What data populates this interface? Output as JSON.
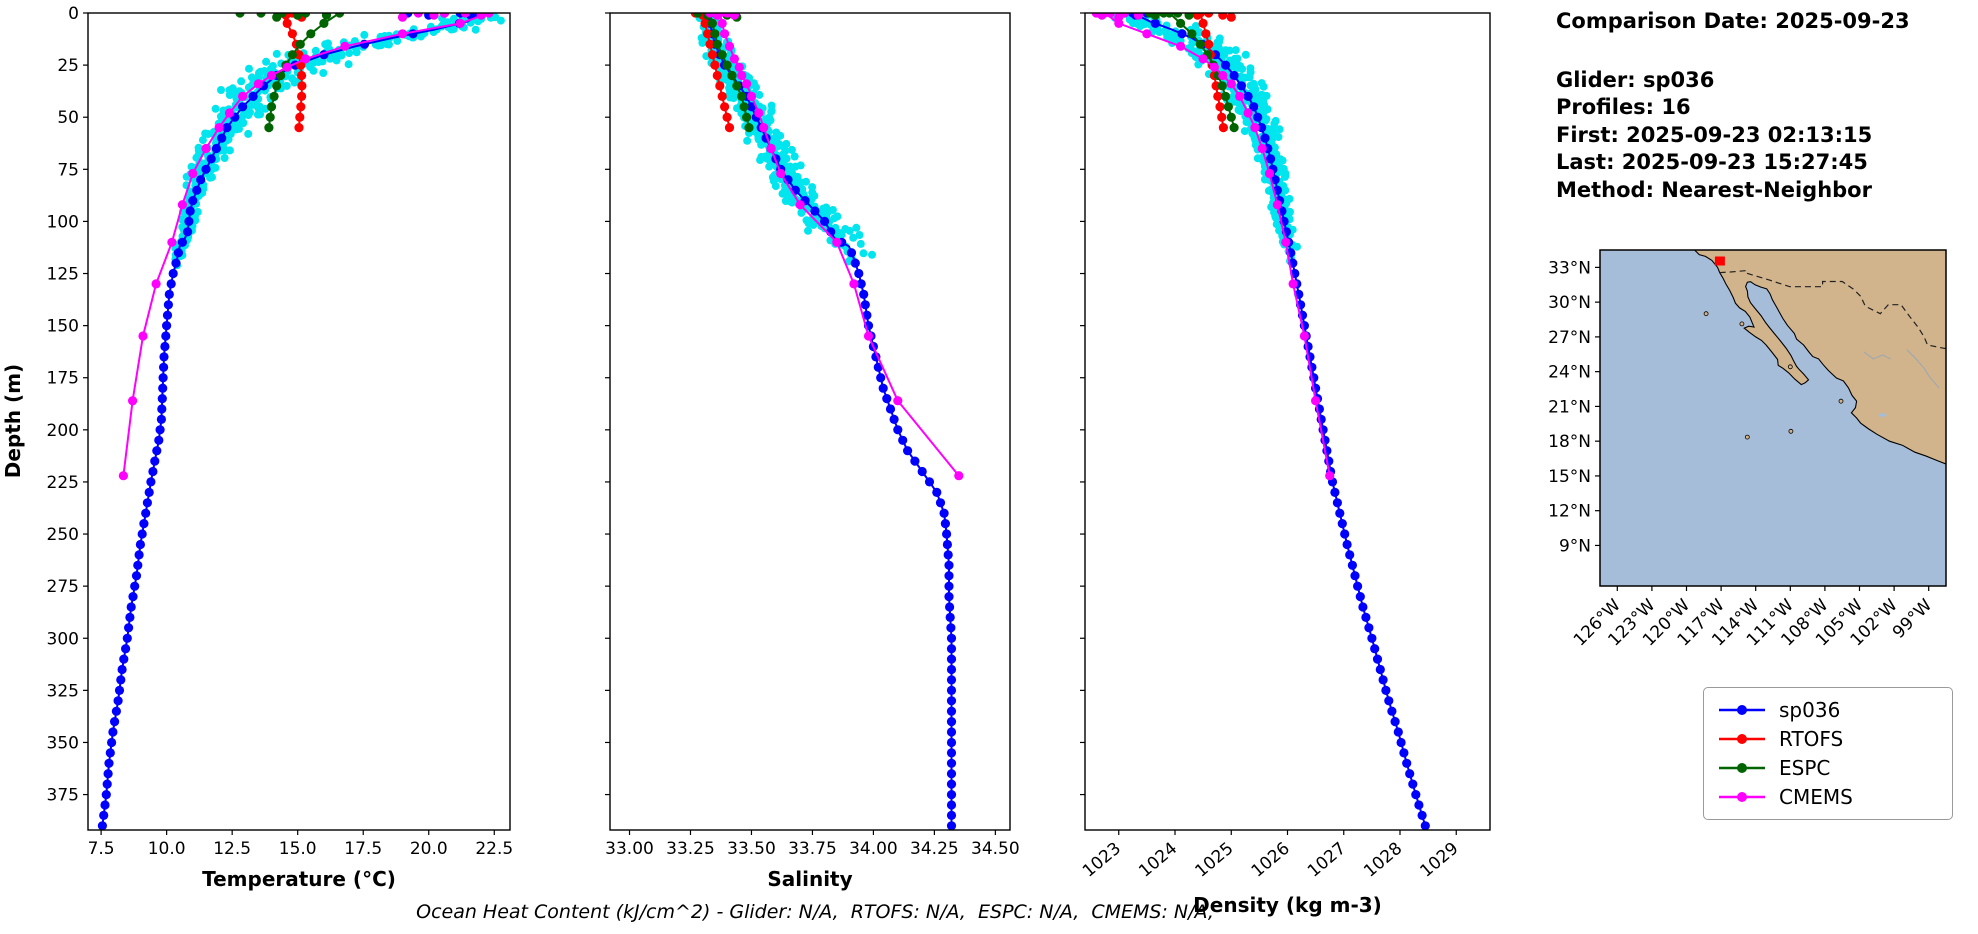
{
  "info": {
    "comparison_date": "Comparison Date: 2025-09-23",
    "glider": "Glider: sp036",
    "profiles": "Profiles: 16",
    "first": "First: 2025-09-23 02:13:15",
    "last": "Last: 2025-09-23 15:27:45",
    "method": "Method: Nearest-Neighbor"
  },
  "footer": "Ocean Heat Content (kJ/cm^2) - Glider: N/A,  RTOFS: N/A,  ESPC: N/A,  CMEMS: N/A,",
  "colors": {
    "sp036": "#0000ff",
    "RTOFS": "#ff0000",
    "ESPC": "#006400",
    "CMEMS": "#ff00ff",
    "glider_scatter": "#00e5ee",
    "map_land": "#d2b48c",
    "map_ocean": "#a6bdd9",
    "marker": "#ff0000"
  },
  "legend": [
    {
      "label": "sp036",
      "color": "#0000ff"
    },
    {
      "label": "RTOFS",
      "color": "#ff0000"
    },
    {
      "label": "ESPC",
      "color": "#006400"
    },
    {
      "label": "CMEMS",
      "color": "#ff00ff"
    }
  ],
  "depth_axis": {
    "label": "Depth (m)",
    "ticks": [
      0,
      25,
      50,
      75,
      100,
      125,
      150,
      175,
      200,
      225,
      250,
      275,
      300,
      325,
      350,
      375
    ],
    "lim": [
      0,
      392
    ]
  },
  "ylim": [
    0,
    392
  ],
  "chart_data": [
    {
      "id": "temperature",
      "type": "line",
      "xlabel": "Temperature (°C)",
      "xlim": [
        7.0,
        23.1
      ],
      "xticks": [
        7.5,
        10.0,
        12.5,
        15.0,
        17.5,
        20.0,
        22.5
      ],
      "tick_decimals": 1,
      "rotate_xticks": false,
      "series": [
        {
          "name": "sp036",
          "marker_step": 5,
          "depths": [
            0,
            4,
            8,
            12,
            16,
            20,
            25,
            30,
            35,
            40,
            45,
            50,
            55,
            60,
            65,
            70,
            75,
            80,
            85,
            90,
            95,
            100,
            105,
            108,
            112,
            118,
            125,
            135,
            150,
            165,
            180,
            195,
            205,
            215,
            225,
            240,
            255,
            270,
            285,
            300,
            315,
            330,
            345,
            360,
            375,
            390
          ],
          "values": [
            21.9,
            21.5,
            20.2,
            18.6,
            17.2,
            16.0,
            14.9,
            14.2,
            13.7,
            13.3,
            12.9,
            12.6,
            12.3,
            12.1,
            11.9,
            11.7,
            11.5,
            11.3,
            11.15,
            11.0,
            10.9,
            10.85,
            10.8,
            10.7,
            10.5,
            10.4,
            10.25,
            10.1,
            10.0,
            9.9,
            9.85,
            9.8,
            9.7,
            9.55,
            9.4,
            9.2,
            9.0,
            8.85,
            8.65,
            8.5,
            8.3,
            8.15,
            7.95,
            7.8,
            7.7,
            7.55
          ],
          "extra_points": [
            [
              0,
              20.6
            ],
            [
              0,
              21.2
            ],
            [
              1,
              20.0
            ],
            [
              0,
              19.2
            ],
            [
              1,
              21.6
            ]
          ]
        },
        {
          "name": "RTOFS",
          "depths": [
            0,
            5,
            10,
            15,
            20,
            25,
            30,
            35,
            40,
            45,
            50,
            55
          ],
          "values": [
            14.4,
            14.6,
            14.8,
            14.95,
            15.05,
            15.12,
            15.15,
            15.16,
            15.15,
            15.12,
            15.08,
            15.05
          ],
          "extra_points": [
            [
              0,
              14.25
            ],
            [
              0,
              14.8
            ],
            [
              1,
              15.0
            ],
            [
              1,
              14.55
            ],
            [
              2,
              15.15
            ]
          ]
        },
        {
          "name": "ESPC",
          "depths": [
            0,
            5,
            10,
            15,
            20,
            25,
            30,
            35,
            40,
            45,
            50,
            55
          ],
          "values": [
            16.6,
            16.0,
            15.5,
            15.1,
            14.8,
            14.55,
            14.35,
            14.2,
            14.1,
            14.0,
            13.95,
            13.9
          ],
          "extra_points": [
            [
              0,
              12.8
            ],
            [
              0,
              13.6
            ],
            [
              0,
              14.4
            ],
            [
              0,
              15.3
            ],
            [
              1,
              16.1
            ],
            [
              1,
              15.0
            ],
            [
              2,
              14.2
            ]
          ]
        },
        {
          "name": "CMEMS",
          "depths": [
            0,
            5,
            10,
            16,
            22,
            26,
            30,
            34,
            40,
            48,
            55,
            65,
            77,
            92,
            110,
            130,
            155,
            186,
            222
          ],
          "values": [
            22.3,
            21.2,
            19.0,
            16.8,
            15.3,
            14.6,
            14.0,
            13.5,
            12.9,
            12.4,
            12.0,
            11.5,
            11.0,
            10.6,
            10.2,
            9.6,
            9.1,
            8.7,
            8.35
          ],
          "extra_points": [
            [
              0,
              19.6
            ],
            [
              0,
              20.6
            ],
            [
              0,
              21.4
            ],
            [
              1,
              22.0
            ],
            [
              1,
              20.2
            ],
            [
              2,
              19.0
            ]
          ]
        }
      ],
      "scatter": {
        "name": "glider-profiles",
        "base": "sp036",
        "profiles": 16,
        "max_depth": 112,
        "envelope_depths": [
          0,
          10,
          20,
          35,
          50,
          70,
          90,
          105,
          112
        ],
        "envelope_values": [
          1.1,
          1.8,
          2.2,
          1.8,
          1.2,
          0.8,
          0.5,
          0.3,
          0.25
        ]
      }
    },
    {
      "id": "salinity",
      "type": "line",
      "xlabel": "Salinity",
      "xlim": [
        32.92,
        34.56
      ],
      "xticks": [
        33.0,
        33.25,
        33.5,
        33.75,
        34.0,
        34.25,
        34.5
      ],
      "tick_decimals": 2,
      "rotate_xticks": false,
      "series": [
        {
          "name": "sp036",
          "marker_step": 5,
          "depths": [
            0,
            5,
            10,
            15,
            20,
            25,
            30,
            35,
            40,
            45,
            50,
            55,
            60,
            65,
            70,
            75,
            80,
            85,
            90,
            95,
            100,
            104,
            108,
            112,
            118,
            125,
            135,
            150,
            160,
            170,
            180,
            190,
            200,
            210,
            220,
            230,
            240,
            250,
            265,
            280,
            300,
            320,
            340,
            360,
            375,
            390
          ],
          "values": [
            33.32,
            33.33,
            33.34,
            33.35,
            33.37,
            33.39,
            33.42,
            33.45,
            33.48,
            33.5,
            33.52,
            33.54,
            33.56,
            33.58,
            33.6,
            33.62,
            33.65,
            33.68,
            33.72,
            33.76,
            33.8,
            33.82,
            33.84,
            33.9,
            33.92,
            33.94,
            33.96,
            33.98,
            34.0,
            34.02,
            34.04,
            34.07,
            34.1,
            34.14,
            34.2,
            34.26,
            34.29,
            34.3,
            34.31,
            34.31,
            34.32,
            34.32,
            34.32,
            34.32,
            34.32,
            34.32
          ],
          "extra_points": [
            [
              0,
              33.3
            ],
            [
              0,
              33.35
            ],
            [
              1,
              33.32
            ]
          ]
        },
        {
          "name": "RTOFS",
          "depths": [
            0,
            5,
            10,
            15,
            20,
            25,
            30,
            35,
            40,
            45,
            50,
            55
          ],
          "values": [
            33.3,
            33.31,
            33.32,
            33.33,
            33.34,
            33.35,
            33.36,
            33.37,
            33.38,
            33.39,
            33.4,
            33.41
          ],
          "extra_points": [
            [
              0,
              33.27
            ],
            [
              0,
              33.33
            ],
            [
              1,
              33.3
            ],
            [
              1,
              33.36
            ]
          ]
        },
        {
          "name": "ESPC",
          "depths": [
            0,
            5,
            10,
            15,
            20,
            25,
            30,
            35,
            40,
            45,
            50,
            55
          ],
          "values": [
            33.33,
            33.34,
            33.35,
            33.36,
            33.38,
            33.4,
            33.42,
            33.44,
            33.46,
            33.47,
            33.48,
            33.49
          ],
          "extra_points": [
            [
              0,
              33.28
            ],
            [
              0,
              33.36
            ],
            [
              1,
              33.32
            ],
            [
              1,
              33.4
            ],
            [
              2,
              33.44
            ]
          ]
        },
        {
          "name": "CMEMS",
          "depths": [
            0,
            5,
            10,
            16,
            22,
            26,
            30,
            34,
            40,
            48,
            55,
            65,
            77,
            92,
            110,
            130,
            155,
            186,
            222
          ],
          "values": [
            33.37,
            33.38,
            33.39,
            33.41,
            33.43,
            33.45,
            33.46,
            33.48,
            33.5,
            33.53,
            33.55,
            33.58,
            33.62,
            33.7,
            33.85,
            33.92,
            33.98,
            34.1,
            34.35
          ],
          "extra_points": [
            [
              0,
              33.33
            ],
            [
              0,
              33.4
            ],
            [
              1,
              33.36
            ],
            [
              1,
              33.43
            ]
          ]
        }
      ],
      "scatter": {
        "name": "glider-profiles",
        "base": "sp036",
        "profiles": 16,
        "max_depth": 112,
        "envelope_depths": [
          0,
          20,
          50,
          80,
          105,
          112
        ],
        "envelope_values": [
          0.05,
          0.08,
          0.1,
          0.11,
          0.13,
          0.1
        ]
      }
    },
    {
      "id": "density",
      "type": "line",
      "xlabel": "Density (kg m-3)",
      "xlim": [
        1022.4,
        1029.6
      ],
      "xticks": [
        1023,
        1024,
        1025,
        1026,
        1027,
        1028,
        1029
      ],
      "tick_decimals": 0,
      "rotate_xticks": true,
      "series": [
        {
          "name": "sp036",
          "marker_step": 5,
          "depths": [
            0,
            4,
            8,
            12,
            16,
            20,
            25,
            30,
            35,
            40,
            45,
            50,
            55,
            60,
            65,
            70,
            75,
            80,
            85,
            90,
            95,
            100,
            105,
            110,
            118,
            125,
            135,
            150,
            165,
            180,
            195,
            210,
            225,
            240,
            255,
            270,
            285,
            300,
            315,
            330,
            345,
            360,
            375,
            390
          ],
          "values": [
            1023.25,
            1023.55,
            1023.95,
            1024.3,
            1024.55,
            1024.72,
            1024.9,
            1025.05,
            1025.18,
            1025.3,
            1025.4,
            1025.47,
            1025.54,
            1025.6,
            1025.65,
            1025.7,
            1025.74,
            1025.78,
            1025.82,
            1025.86,
            1025.9,
            1025.94,
            1025.98,
            1026.02,
            1026.08,
            1026.13,
            1026.2,
            1026.3,
            1026.4,
            1026.5,
            1026.6,
            1026.7,
            1026.8,
            1026.93,
            1027.06,
            1027.2,
            1027.34,
            1027.5,
            1027.65,
            1027.8,
            1027.97,
            1028.12,
            1028.28,
            1028.45
          ],
          "extra_points": [
            [
              0,
              1023.1
            ],
            [
              0,
              1023.5
            ],
            [
              1,
              1023.3
            ]
          ]
        },
        {
          "name": "RTOFS",
          "depths": [
            0,
            5,
            10,
            15,
            20,
            25,
            30,
            35,
            40,
            45,
            50,
            55
          ],
          "values": [
            1024.45,
            1024.5,
            1024.55,
            1024.6,
            1024.63,
            1024.66,
            1024.7,
            1024.73,
            1024.76,
            1024.8,
            1024.83,
            1024.86
          ],
          "extra_points": [
            [
              0,
              1024.25
            ],
            [
              0,
              1024.6
            ],
            [
              1,
              1024.4
            ],
            [
              1,
              1024.85
            ],
            [
              2,
              1025.0
            ]
          ]
        },
        {
          "name": "ESPC",
          "depths": [
            0,
            5,
            10,
            15,
            20,
            25,
            30,
            35,
            40,
            45,
            50,
            55
          ],
          "values": [
            1023.9,
            1024.1,
            1024.3,
            1024.45,
            1024.58,
            1024.68,
            1024.77,
            1024.84,
            1024.9,
            1024.95,
            1025.0,
            1025.05
          ],
          "extra_points": [
            [
              0,
              1023.55
            ],
            [
              0,
              1023.8
            ],
            [
              0,
              1024.05
            ],
            [
              1,
              1024.25
            ],
            [
              1,
              1023.65
            ]
          ]
        },
        {
          "name": "CMEMS",
          "depths": [
            0,
            5,
            10,
            16,
            22,
            26,
            30,
            34,
            40,
            48,
            55,
            65,
            77,
            92,
            110,
            130,
            155,
            186,
            222
          ],
          "values": [
            1022.75,
            1023.0,
            1023.5,
            1024.1,
            1024.5,
            1024.7,
            1024.85,
            1025.0,
            1025.15,
            1025.3,
            1025.42,
            1025.55,
            1025.68,
            1025.82,
            1025.97,
            1026.1,
            1026.3,
            1026.5,
            1026.75
          ],
          "extra_points": [
            [
              0,
              1022.6
            ],
            [
              0,
              1022.85
            ],
            [
              0,
              1023.1
            ],
            [
              1,
              1023.35
            ],
            [
              1,
              1022.7
            ],
            [
              2,
              1023.0
            ]
          ]
        }
      ],
      "scatter": {
        "name": "glider-profiles",
        "base": "sp036",
        "profiles": 16,
        "max_depth": 112,
        "envelope_depths": [
          0,
          12,
          25,
          45,
          70,
          95,
          112
        ],
        "envelope_values": [
          0.5,
          0.7,
          0.65,
          0.45,
          0.3,
          0.2,
          0.15
        ]
      }
    }
  ],
  "map": {
    "extent": {
      "lon": [
        -127.5,
        -97.5
      ],
      "lat": [
        5.5,
        34.5
      ]
    },
    "lat_tick_values": [
      33,
      30,
      27,
      24,
      21,
      18,
      15,
      12,
      9
    ],
    "lat_tick_labels": [
      "33°N",
      "30°N",
      "27°N",
      "24°N",
      "21°N",
      "18°N",
      "15°N",
      "12°N",
      "9°N"
    ],
    "lon_tick_values": [
      -126,
      -123,
      -120,
      -117,
      -114,
      -111,
      -108,
      -105,
      -102,
      -99
    ],
    "lon_tick_labels": [
      "126°W",
      "123°W",
      "120°W",
      "117°W",
      "114°W",
      "111°W",
      "108°W",
      "105°W",
      "102°W",
      "99°W"
    ],
    "marker": {
      "lon": -117.1,
      "lat": 33.55
    }
  }
}
